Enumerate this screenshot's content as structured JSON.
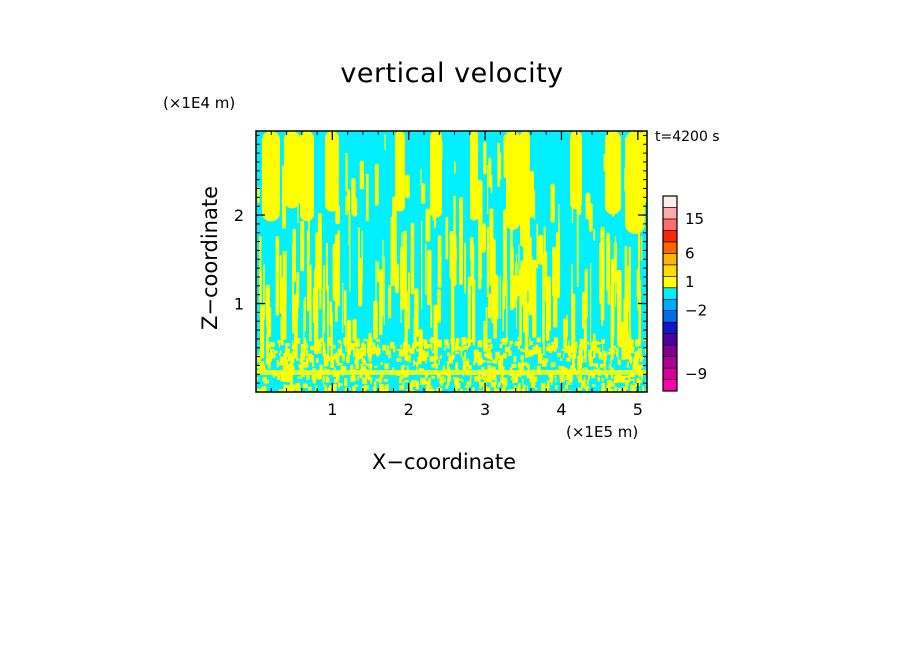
{
  "chart_data": {
    "type": "heatmap",
    "title": "vertical velocity",
    "xlabel": "X−coordinate",
    "ylabel": "Z−coordinate",
    "x_unit": "(×1E5 m)",
    "y_unit": "(×1E4 m)",
    "time_label": "t=4200 s",
    "xlim": [
      0,
      5.12
    ],
    "ylim": [
      0,
      2.95
    ],
    "x_ticks": [
      1,
      2,
      3,
      4,
      5
    ],
    "y_ticks": [
      1,
      2
    ],
    "colorbar": {
      "levels": [
        {
          "color": "#ff00aa"
        },
        {
          "color": "#d8009c"
        },
        {
          "color": "#b00094"
        },
        {
          "color": "#800090"
        },
        {
          "color": "#4b00a0"
        },
        {
          "color": "#1414c8"
        },
        {
          "color": "#006ee6"
        },
        {
          "color": "#00aaff"
        },
        {
          "color": "#00f0ff"
        },
        {
          "color": "#ffff00"
        },
        {
          "color": "#ffdc00"
        },
        {
          "color": "#ffb400"
        },
        {
          "color": "#ff6400"
        },
        {
          "color": "#ff2800"
        },
        {
          "color": "#ff6e6e"
        },
        {
          "color": "#ffaaaa"
        },
        {
          "color": "#ffeeee"
        }
      ],
      "labels": [
        {
          "text": "15",
          "level": 15
        },
        {
          "text": "6",
          "level": 12
        },
        {
          "text": "1",
          "level": 9.5
        },
        {
          "text": "−2",
          "level": 7
        },
        {
          "text": "−9",
          "level": 1.5
        }
      ]
    },
    "fill_colors": {
      "negative": "#00f0ff",
      "positive": "#ffff00"
    }
  }
}
